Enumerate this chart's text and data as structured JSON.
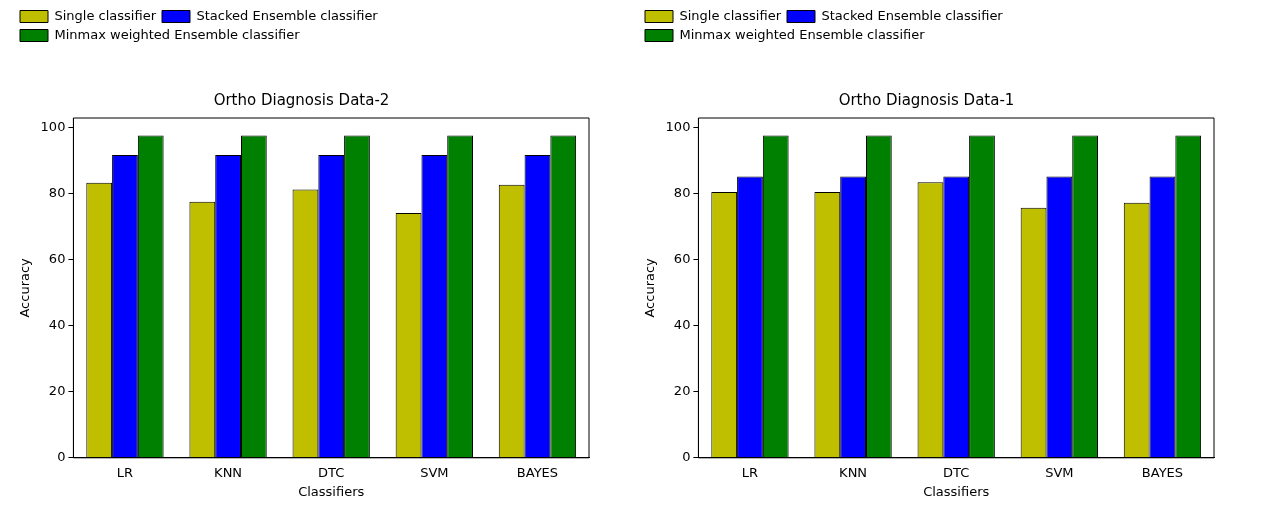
{
  "chart_data": [
    {
      "type": "bar",
      "title": "Ortho Diagnosis Data-2",
      "xlabel": "Classifiers",
      "ylabel": "Accuracy",
      "categories": [
        "LR",
        "KNN",
        "DTC",
        "SVM",
        "BAYES"
      ],
      "series": [
        {
          "name": "Single classifier",
          "color": "#bfbf00",
          "values": [
            83.4,
            77.6,
            81.3,
            74.2,
            82.8
          ]
        },
        {
          "name": "Stacked Ensemble classifier",
          "color": "#0000ff",
          "values": [
            91.8,
            91.8,
            91.8,
            91.8,
            91.8
          ]
        },
        {
          "name": "Minmax weighted Ensemble classifier",
          "color": "#008000",
          "values": [
            97.7,
            97.7,
            97.7,
            97.7,
            97.7
          ]
        }
      ],
      "ylim": [
        0,
        103
      ],
      "yticks": [
        0,
        20,
        40,
        60,
        80,
        100
      ],
      "grid": false,
      "legend": "top left"
    },
    {
      "type": "bar",
      "title": "Ortho Diagnosis Data-1",
      "xlabel": "Classifiers",
      "ylabel": "Accuracy",
      "categories": [
        "LR",
        "KNN",
        "DTC",
        "SVM",
        "BAYES"
      ],
      "series": [
        {
          "name": "Single classifier",
          "color": "#bfbf00",
          "values": [
            80.6,
            80.6,
            83.5,
            75.8,
            77.3
          ]
        },
        {
          "name": "Stacked Ensemble classifier",
          "color": "#0000ff",
          "values": [
            85.3,
            85.3,
            85.3,
            85.3,
            85.3
          ]
        },
        {
          "name": "Minmax weighted Ensemble classifier",
          "color": "#008000",
          "values": [
            97.7,
            97.7,
            97.7,
            97.7,
            97.7
          ]
        }
      ],
      "ylim": [
        0,
        103
      ],
      "yticks": [
        0,
        20,
        40,
        60,
        80,
        100
      ],
      "grid": false,
      "legend": "top left"
    }
  ]
}
